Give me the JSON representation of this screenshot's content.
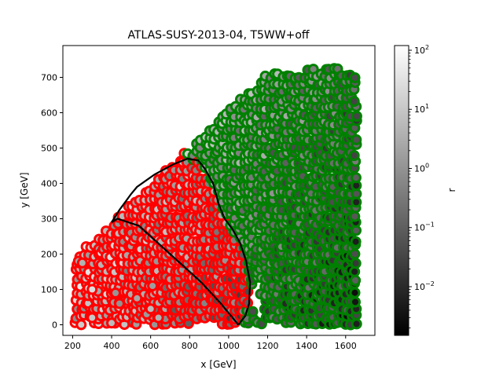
{
  "chart_data": {
    "type": "scatter",
    "title": "ATLAS-SUSY-2013-04, T5WW+off",
    "xlabel": "x [GeV]",
    "ylabel": "y [GeV]",
    "xlim": [
      150,
      1750
    ],
    "ylim": [
      -30,
      790
    ],
    "x_ticks": [
      200,
      400,
      600,
      800,
      1000,
      1200,
      1400,
      1600
    ],
    "y_ticks": [
      0,
      100,
      200,
      300,
      400,
      500,
      600,
      700
    ],
    "colorbar": {
      "label": "r",
      "scale": "log",
      "range": [
        0.0015,
        120
      ],
      "ticks": [
        {
          "value": 0.01,
          "base": "10",
          "exp": "−2"
        },
        {
          "value": 0.1,
          "base": "10",
          "exp": "−1"
        },
        {
          "value": 1,
          "base": "10",
          "exp": "0"
        },
        {
          "value": 10,
          "base": "10",
          "exp": "1"
        },
        {
          "value": 100,
          "base": "10",
          "exp": "2"
        }
      ]
    },
    "colors": {
      "excluded": "#ff0000",
      "allowed": "#008000",
      "contour": "#000000"
    },
    "exclusion_contour": [
      [
        1050,
        0
      ],
      [
        1020,
        20
      ],
      [
        960,
        60
      ],
      [
        860,
        120
      ],
      [
        740,
        180
      ],
      [
        640,
        230
      ],
      [
        540,
        280
      ],
      [
        430,
        300
      ],
      [
        400,
        290
      ],
      [
        440,
        325
      ],
      [
        500,
        370
      ],
      [
        530,
        390
      ],
      [
        620,
        425
      ],
      [
        720,
        455
      ],
      [
        790,
        470
      ],
      [
        845,
        465
      ],
      [
        880,
        440
      ],
      [
        920,
        400
      ],
      [
        950,
        340
      ],
      [
        980,
        300
      ],
      [
        1020,
        270
      ],
      [
        1060,
        230
      ],
      [
        1090,
        180
      ],
      [
        1110,
        120
      ],
      [
        1105,
        60
      ],
      [
        1085,
        25
      ],
      [
        1050,
        0
      ]
    ]
  }
}
